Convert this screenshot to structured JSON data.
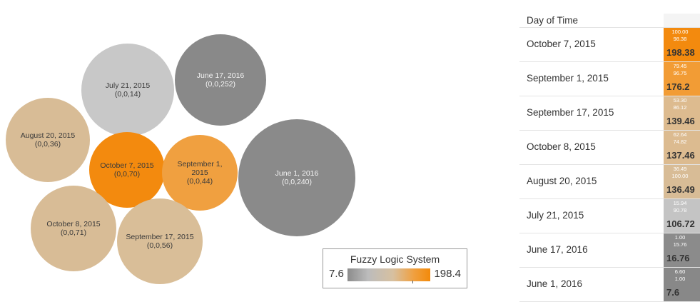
{
  "chart_data": [
    {
      "type": "bubble",
      "value_key": "last triple element",
      "color_range": [
        7.6,
        198.4
      ],
      "bubbles": [
        {
          "line1": "June 17, 2016",
          "line2": "(0,0,252)",
          "value": 252,
          "color_value": 16.76,
          "color": "#898989"
        },
        {
          "line1": "June 1, 2016",
          "line2": "(0,0,240)",
          "value": 240,
          "color_value": 7.6,
          "color": "#8a8a8a"
        },
        {
          "line1": "July 21, 2015",
          "line2": "(0,0,14)",
          "value": 14,
          "color_value": 106.72,
          "color": "#c8c8c8"
        },
        {
          "line1": "August 20, 2015",
          "line2": "(0,0,36)",
          "value": 36,
          "color_value": 136.49,
          "color": "#d8bc96"
        },
        {
          "line1": "October 7, 2015",
          "line2": "(0,0,70)",
          "value": 70,
          "color_value": 198.38,
          "color": "#f38a0e"
        },
        {
          "line1": "September 1,",
          "line2": "2015",
          "line3": "(0,0,44)",
          "value": 44,
          "color_value": 176.2,
          "color": "#f0a040"
        },
        {
          "line1": "October 8, 2015",
          "line2": "(0,0,71)",
          "value": 71,
          "color_value": 137.46,
          "color": "#d8bc96"
        },
        {
          "line1": "September 17, 2015",
          "line2": "(0,0,56)",
          "value": 56,
          "color_value": 139.46,
          "color": "#d9be98"
        }
      ]
    },
    {
      "type": "table",
      "header": "Day of Time",
      "rows": [
        {
          "date": "October 7, 2015",
          "v1": "100.00",
          "v2": "98.38",
          "total": "198.38",
          "color": "#f38a0e"
        },
        {
          "date": "September 1, 2015",
          "v1": "79.45",
          "v2": "96.75",
          "total": "176.2",
          "color": "#f29c35"
        },
        {
          "date": "September 17, 2015",
          "v1": "53.30",
          "v2": "86.12",
          "total": "139.46",
          "color": "#ddbb8f"
        },
        {
          "date": "October 8, 2015",
          "v1": "62.64",
          "v2": "74.82",
          "total": "137.46",
          "color": "#dcbb90"
        },
        {
          "date": "August 20, 2015",
          "v1": "36.49",
          "v2": "100.00",
          "total": "136.49",
          "color": "#d8bc96"
        },
        {
          "date": "July 21, 2015",
          "v1": "15.94",
          "v2": "90.78",
          "total": "106.72",
          "color": "#c4c4c4"
        },
        {
          "date": "June 17, 2016",
          "v1": "1.00",
          "v2": "15.76",
          "total": "16.76",
          "color": "#8b8b8b"
        },
        {
          "date": "June 1, 2016",
          "v1": "6.60",
          "v2": "1.00",
          "total": "7.6",
          "color": "#888888"
        }
      ]
    }
  ],
  "legend": {
    "title": "Fuzzy Logic System",
    "min": "7.6",
    "max": "198.4"
  }
}
